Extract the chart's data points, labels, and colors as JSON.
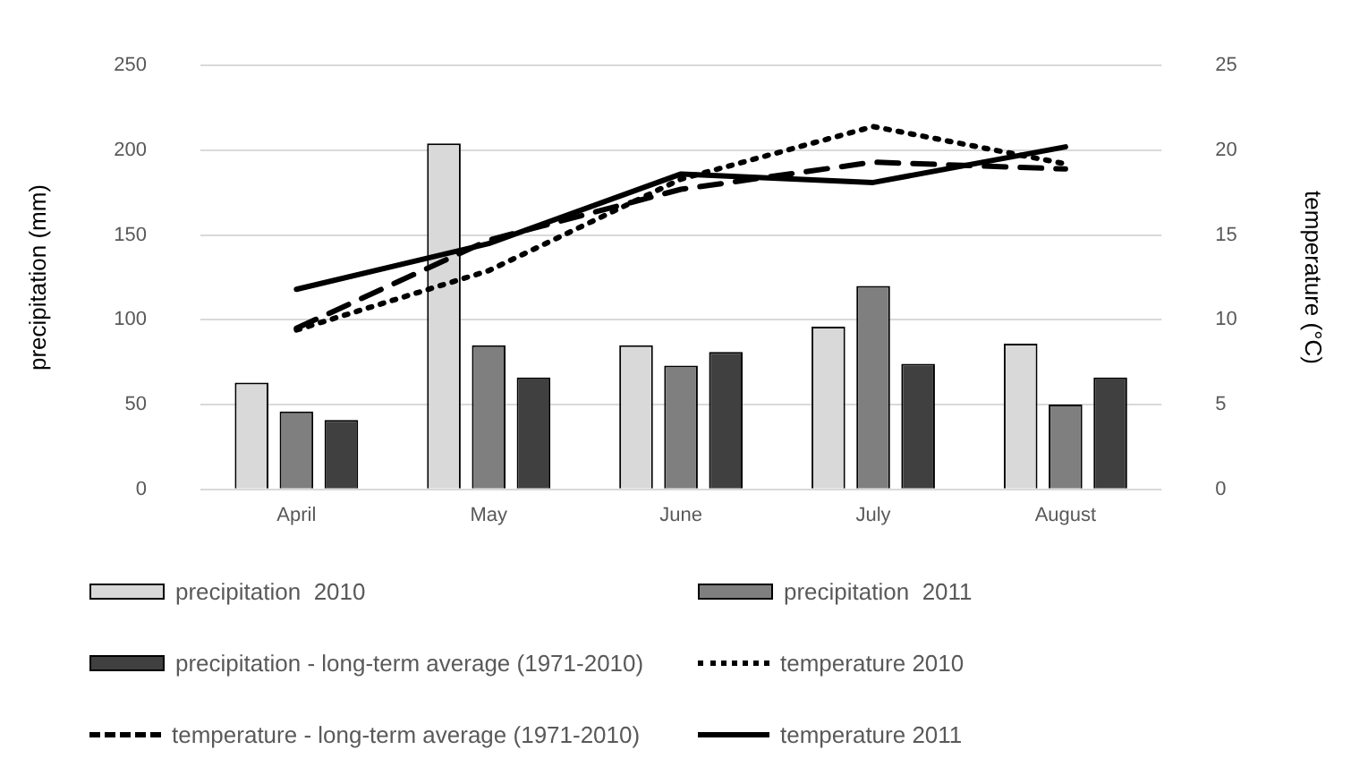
{
  "chart_data": {
    "type": "bar",
    "categories": [
      "April",
      "May",
      "June",
      "July",
      "August"
    ],
    "ylabel": "precipitation (mm)",
    "y2label": "temperature (°C)",
    "ylim": [
      0,
      250
    ],
    "yticks": [
      0,
      50,
      100,
      150,
      200,
      250
    ],
    "y2lim": [
      0,
      25
    ],
    "y2ticks": [
      0,
      5,
      10,
      15,
      20,
      25
    ],
    "grid": "y",
    "legend": "bottom",
    "marker": "none",
    "series": [
      {
        "name": "precipitation  2010",
        "color": "#d9d9d9",
        "values": [
          63,
          204,
          85,
          96,
          86
        ]
      },
      {
        "name": "precipitation  2011",
        "color": "#7f7f7f",
        "values": [
          46,
          85,
          73,
          120,
          50
        ]
      },
      {
        "name": "precipitation - long-term average (1971-2010)",
        "color": "#404040",
        "values": [
          41,
          66,
          81,
          74,
          66
        ]
      },
      {
        "name": "temperature 2010",
        "type": "line",
        "axis": "y2",
        "color": "#000000",
        "line_style": "dotted",
        "values": [
          9.4,
          12.9,
          18.3,
          21.4,
          19.2
        ]
      },
      {
        "name": "temperature - long-term average (1971-2010)",
        "type": "line",
        "axis": "y2",
        "color": "#000000",
        "line_style": "dashed",
        "values": [
          9.5,
          14.7,
          17.7,
          19.3,
          18.9
        ]
      },
      {
        "name": "temperature 2011",
        "type": "line",
        "axis": "y2",
        "color": "#000000",
        "line_style": "solid",
        "values": [
          11.8,
          14.5,
          18.6,
          18.1,
          20.2
        ]
      }
    ]
  }
}
